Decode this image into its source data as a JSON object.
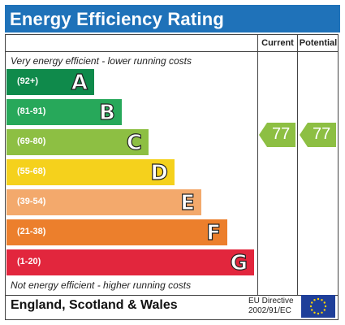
{
  "title": "Energy Efficiency Rating",
  "columns": {
    "current": "Current",
    "potential": "Potential"
  },
  "notes": {
    "top": "Very energy efficient - lower running costs",
    "bottom": "Not energy efficient - higher running costs"
  },
  "bands": [
    {
      "range": "(92+)",
      "letter": "A",
      "color": "#0f8a4b"
    },
    {
      "range": "(81-91)",
      "letter": "B",
      "color": "#27a85a"
    },
    {
      "range": "(69-80)",
      "letter": "C",
      "color": "#8dbf43"
    },
    {
      "range": "(55-68)",
      "letter": "D",
      "color": "#f5d11c"
    },
    {
      "range": "(39-54)",
      "letter": "E",
      "color": "#f3a96c"
    },
    {
      "range": "(21-38)",
      "letter": "F",
      "color": "#ec7f2c"
    },
    {
      "range": "(1-20)",
      "letter": "G",
      "color": "#e2263d"
    }
  ],
  "ratings": {
    "current": "77",
    "potential": "77",
    "color": "#8dbf43"
  },
  "footer": {
    "region": "England, Scotland & Wales",
    "directive_line1": "EU Directive",
    "directive_line2": "2002/91/EC"
  }
}
